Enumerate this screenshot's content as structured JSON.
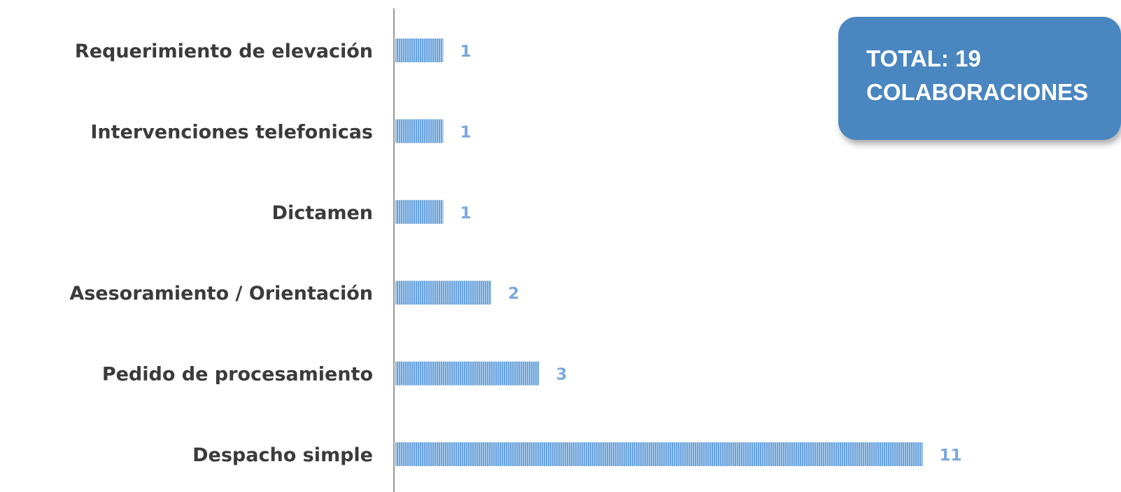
{
  "chart_data": {
    "type": "bar",
    "orientation": "horizontal",
    "categories": [
      "Requerimiento de elevación",
      "Intervenciones telefonicas",
      "Dictamen",
      "Asesoramiento / Orientación",
      "Pedido de procesamiento",
      "Despacho simple"
    ],
    "values": [
      1,
      1,
      1,
      2,
      3,
      11
    ],
    "data_labels": [
      "1",
      "1",
      "1",
      "2",
      "3",
      "11"
    ],
    "title": "",
    "xlabel": "",
    "ylabel": "",
    "xlim": [
      0,
      11
    ],
    "grid": false,
    "legend": "none"
  },
  "total_box": {
    "line1": "TOTAL: 19",
    "line2": "COLABORACIONES"
  },
  "colors": {
    "bar": "#6aa3dc",
    "bar_stripe": "#ffffff",
    "value_label": "#7aa9dc",
    "axis": "#9a9a9a",
    "category_label": "#3b3b3b",
    "total_box_bg": "#4a86c0",
    "total_box_text": "#ffffff"
  }
}
